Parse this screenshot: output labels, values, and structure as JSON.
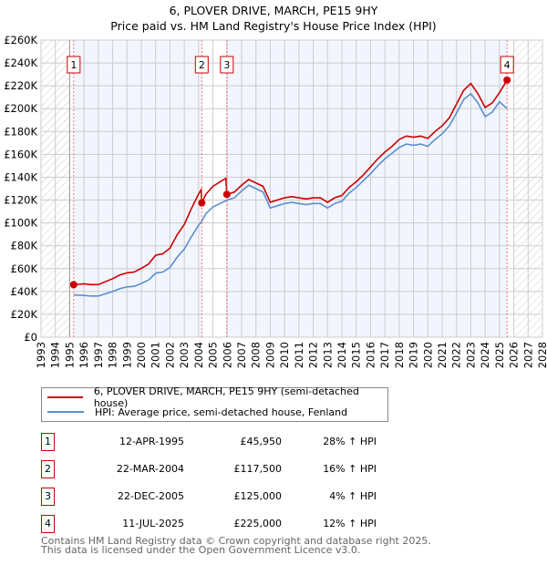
{
  "chart_data": {
    "type": "line",
    "title": "6, PLOVER DRIVE, MARCH, PE15 9HY",
    "subtitle": "Price paid vs. HM Land Registry's House Price Index (HPI)",
    "xlim": [
      1993,
      2028
    ],
    "ylim": [
      0,
      260000
    ],
    "y_ticks": [
      {
        "v": 0,
        "label": "£0"
      },
      {
        "v": 20000,
        "label": "£20K"
      },
      {
        "v": 40000,
        "label": "£40K"
      },
      {
        "v": 60000,
        "label": "£60K"
      },
      {
        "v": 80000,
        "label": "£80K"
      },
      {
        "v": 100000,
        "label": "£100K"
      },
      {
        "v": 120000,
        "label": "£120K"
      },
      {
        "v": 140000,
        "label": "£140K"
      },
      {
        "v": 160000,
        "label": "£160K"
      },
      {
        "v": 180000,
        "label": "£180K"
      },
      {
        "v": 200000,
        "label": "£200K"
      },
      {
        "v": 220000,
        "label": "£220K"
      },
      {
        "v": 240000,
        "label": "£240K"
      },
      {
        "v": 260000,
        "label": "£260K"
      }
    ],
    "x_ticks": [
      "1993",
      "1994",
      "1995",
      "1996",
      "1997",
      "1998",
      "1999",
      "2000",
      "2001",
      "2002",
      "2003",
      "2004",
      "2005",
      "2006",
      "2007",
      "2008",
      "2009",
      "2010",
      "2011",
      "2012",
      "2013",
      "2014",
      "2015",
      "2016",
      "2017",
      "2018",
      "2019",
      "2020",
      "2021",
      "2022",
      "2023",
      "2024",
      "2025",
      "2026",
      "2027",
      "2028"
    ],
    "series": [
      {
        "name": "6, PLOVER DRIVE, MARCH, PE15 9HY (semi-detached house)",
        "color": "#cc0000",
        "points": [
          [
            1995.28,
            45950
          ],
          [
            1996,
            46700
          ],
          [
            1996.5,
            46000
          ],
          [
            1997,
            46000
          ],
          [
            1997.5,
            48600
          ],
          [
            1998,
            51200
          ],
          [
            1998.5,
            54400
          ],
          [
            1999,
            56300
          ],
          [
            1999.5,
            57000
          ],
          [
            2000,
            60200
          ],
          [
            2000.5,
            64000
          ],
          [
            2001,
            71700
          ],
          [
            2001.5,
            73000
          ],
          [
            2002,
            78000
          ],
          [
            2002.5,
            89600
          ],
          [
            2003,
            98600
          ],
          [
            2003.5,
            112600
          ],
          [
            2004,
            125400
          ],
          [
            2004.18,
            129000
          ],
          [
            2004.22,
            117500
          ],
          [
            2004.5,
            125000
          ],
          [
            2005,
            132000
          ],
          [
            2005.5,
            136000
          ],
          [
            2005.9,
            139000
          ],
          [
            2005.97,
            125000
          ],
          [
            2006.5,
            127000
          ],
          [
            2007,
            133000
          ],
          [
            2007.5,
            138000
          ],
          [
            2008,
            135000
          ],
          [
            2008.5,
            132000
          ],
          [
            2009,
            118000
          ],
          [
            2009.5,
            120000
          ],
          [
            2010,
            122000
          ],
          [
            2010.5,
            123000
          ],
          [
            2011,
            122000
          ],
          [
            2011.5,
            121000
          ],
          [
            2012,
            122000
          ],
          [
            2012.5,
            122000
          ],
          [
            2013,
            118000
          ],
          [
            2013.5,
            122000
          ],
          [
            2014,
            124000
          ],
          [
            2014.5,
            131000
          ],
          [
            2015,
            136000
          ],
          [
            2015.5,
            142000
          ],
          [
            2016,
            149000
          ],
          [
            2016.5,
            156000
          ],
          [
            2017,
            162000
          ],
          [
            2017.5,
            167000
          ],
          [
            2018,
            173000
          ],
          [
            2018.5,
            176000
          ],
          [
            2019,
            175000
          ],
          [
            2019.5,
            176000
          ],
          [
            2020,
            174000
          ],
          [
            2020.5,
            180000
          ],
          [
            2021,
            185000
          ],
          [
            2021.5,
            192000
          ],
          [
            2022,
            204000
          ],
          [
            2022.5,
            216000
          ],
          [
            2023,
            222000
          ],
          [
            2023.5,
            213000
          ],
          [
            2024,
            201000
          ],
          [
            2024.5,
            205000
          ],
          [
            2025,
            214000
          ],
          [
            2025.53,
            225000
          ]
        ]
      },
      {
        "name": "HPI: Average price, semi-detached house, Fenland",
        "color": "#5b8fd0",
        "points": [
          [
            1995.28,
            37000
          ],
          [
            1996,
            36500
          ],
          [
            1996.5,
            36000
          ],
          [
            1997,
            36000
          ],
          [
            1997.5,
            38000
          ],
          [
            1998,
            40000
          ],
          [
            1998.5,
            42500
          ],
          [
            1999,
            44000
          ],
          [
            1999.5,
            44500
          ],
          [
            2000,
            47000
          ],
          [
            2000.5,
            50000
          ],
          [
            2001,
            56000
          ],
          [
            2001.5,
            57000
          ],
          [
            2002,
            61000
          ],
          [
            2002.5,
            70000
          ],
          [
            2003,
            77000
          ],
          [
            2003.5,
            88000
          ],
          [
            2004,
            98000
          ],
          [
            2004.2,
            101000
          ],
          [
            2004.5,
            108000
          ],
          [
            2005,
            114000
          ],
          [
            2005.5,
            117000
          ],
          [
            2006,
            120000
          ],
          [
            2006.5,
            122000
          ],
          [
            2007,
            128000
          ],
          [
            2007.5,
            133000
          ],
          [
            2008,
            130000
          ],
          [
            2008.5,
            127000
          ],
          [
            2009,
            113000
          ],
          [
            2009.5,
            115000
          ],
          [
            2010,
            117000
          ],
          [
            2010.5,
            118000
          ],
          [
            2011,
            117000
          ],
          [
            2011.5,
            116000
          ],
          [
            2012,
            117000
          ],
          [
            2012.5,
            117000
          ],
          [
            2013,
            113000
          ],
          [
            2013.5,
            117000
          ],
          [
            2014,
            119000
          ],
          [
            2014.5,
            126000
          ],
          [
            2015,
            131000
          ],
          [
            2015.5,
            137000
          ],
          [
            2016,
            143000
          ],
          [
            2016.5,
            150000
          ],
          [
            2017,
            156000
          ],
          [
            2017.5,
            161000
          ],
          [
            2018,
            166000
          ],
          [
            2018.5,
            169000
          ],
          [
            2019,
            168000
          ],
          [
            2019.5,
            169000
          ],
          [
            2020,
            167000
          ],
          [
            2020.5,
            173000
          ],
          [
            2021,
            178000
          ],
          [
            2021.5,
            185000
          ],
          [
            2022,
            196000
          ],
          [
            2022.5,
            208000
          ],
          [
            2023,
            213000
          ],
          [
            2023.5,
            205000
          ],
          [
            2024,
            193000
          ],
          [
            2024.5,
            197000
          ],
          [
            2025,
            206000
          ],
          [
            2025.53,
            200000
          ]
        ]
      }
    ],
    "sales": [
      {
        "n": "1",
        "x": 1995.28,
        "price": 45950,
        "date": "12-APR-1995",
        "price_label": "£45,950",
        "hpi": "28% ↑ HPI"
      },
      {
        "n": "2",
        "x": 2004.22,
        "price": 117500,
        "date": "22-MAR-2004",
        "price_label": "£117,500",
        "hpi": "16% ↑ HPI"
      },
      {
        "n": "3",
        "x": 2005.97,
        "price": 125000,
        "date": "22-DEC-2005",
        "price_label": "£125,000",
        "hpi": "4% ↑ HPI"
      },
      {
        "n": "4",
        "x": 2025.53,
        "price": 225000,
        "date": "11-JUL-2025",
        "price_label": "£225,000",
        "hpi": "12% ↑ HPI"
      }
    ],
    "hatched_before": 1995,
    "hatched_after": 2026
  },
  "legend": {
    "red": "6, PLOVER DRIVE, MARCH, PE15 9HY (semi-detached house)",
    "blue": "HPI: Average price, semi-detached house, Fenland"
  },
  "footer": {
    "line1": "Contains HM Land Registry data © Crown copyright and database right 2025.",
    "line2": "This data is licensed under the Open Government Licence v3.0."
  }
}
